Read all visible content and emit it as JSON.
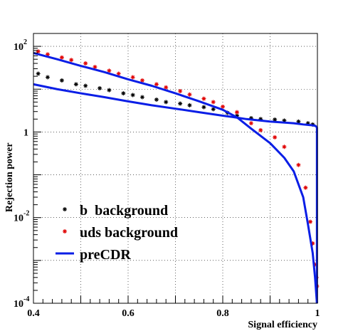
{
  "chart_data": {
    "type": "scatter",
    "title": "",
    "xlabel": "Signal efficiency",
    "ylabel": "Rejection power",
    "xlim": [
      0.4,
      1.0
    ],
    "ylim": [
      0.0001,
      200
    ],
    "y_scale": "log",
    "grid": true,
    "legend_position": "lower-left",
    "x_ticks": [
      {
        "value": 0.4,
        "label": "0.4"
      },
      {
        "value": 0.6,
        "label": "0.6"
      },
      {
        "value": 0.8,
        "label": "0.8"
      },
      {
        "value": 1.0,
        "label": "1"
      }
    ],
    "y_ticks": [
      {
        "value": 0.0001,
        "base": "10",
        "exp": "-4"
      },
      {
        "value": 0.01,
        "base": "10",
        "exp": "-2"
      },
      {
        "value": 1,
        "base": "1",
        "exp": ""
      },
      {
        "value": 100,
        "base": "10",
        "exp": "2"
      }
    ],
    "series": [
      {
        "name": "b  background",
        "kind": "markers",
        "color": "#000000",
        "x": [
          0.41,
          0.43,
          0.46,
          0.49,
          0.51,
          0.54,
          0.56,
          0.59,
          0.61,
          0.63,
          0.66,
          0.68,
          0.71,
          0.73,
          0.76,
          0.78,
          0.81,
          0.83,
          0.86,
          0.88,
          0.91,
          0.93,
          0.96,
          0.98,
          0.99
        ],
        "y": [
          23,
          19,
          16,
          13,
          12,
          10.5,
          9.5,
          8,
          7.3,
          6.5,
          5.7,
          5,
          4.6,
          4.2,
          3.8,
          3.4,
          2.8,
          2.4,
          2.1,
          2.0,
          1.95,
          1.85,
          1.75,
          1.6,
          1.5
        ]
      },
      {
        "name": "uds background",
        "kind": "markers",
        "color": "#e00000",
        "x": [
          0.41,
          0.43,
          0.46,
          0.48,
          0.51,
          0.53,
          0.56,
          0.58,
          0.61,
          0.63,
          0.66,
          0.68,
          0.71,
          0.73,
          0.76,
          0.78,
          0.8,
          0.83,
          0.86,
          0.88,
          0.91,
          0.93,
          0.96,
          0.975,
          0.985,
          0.99,
          0.995,
          0.998,
          0.999
        ],
        "y": [
          76,
          65,
          55,
          48,
          40,
          33,
          27,
          23,
          19,
          16,
          13,
          11,
          9,
          7.5,
          6,
          5,
          3.9,
          2.9,
          1.6,
          1.1,
          0.75,
          0.45,
          0.17,
          0.05,
          0.008,
          0.0025,
          0.0008,
          0.0004,
          0.00025
        ]
      },
      {
        "name": "preCDR",
        "kind": "line",
        "color": "#0a1ee6",
        "x": [
          0.4,
          0.45,
          0.5,
          0.55,
          0.6,
          0.65,
          0.7,
          0.75,
          0.8,
          0.82,
          0.85,
          0.9,
          0.95,
          0.97,
          0.985,
          0.995,
          0.999
        ],
        "y": [
          13,
          10,
          8,
          6.5,
          5.2,
          4.2,
          3.5,
          2.9,
          2.4,
          2.25,
          2.0,
          1.75,
          1.6,
          1.5,
          1.45,
          1.4,
          1.3
        ]
      },
      {
        "name": "",
        "kind": "line",
        "color": "#0a1ee6",
        "x": [
          0.4,
          0.45,
          0.5,
          0.55,
          0.6,
          0.65,
          0.7,
          0.75,
          0.8,
          0.83,
          0.86,
          0.9,
          0.93,
          0.95,
          0.97,
          0.98,
          0.99,
          0.995,
          0.999
        ],
        "y": [
          70,
          50,
          35,
          25,
          17,
          12,
          8,
          5.2,
          3.3,
          2.2,
          1.2,
          0.55,
          0.25,
          0.12,
          0.03,
          0.007,
          0.0015,
          0.0004,
          0.0001
        ]
      }
    ]
  }
}
